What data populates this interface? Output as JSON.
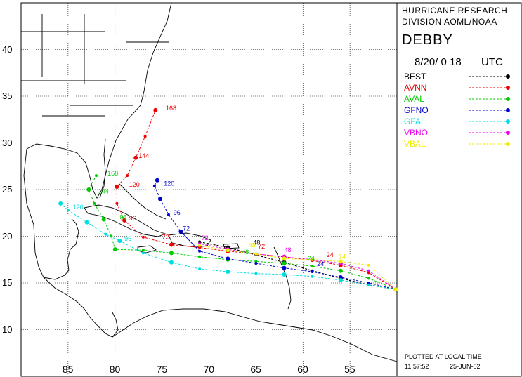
{
  "panel": {
    "org_line1": "HURRICANE RESEARCH",
    "org_line2": "DIVISION AOML/NOAA",
    "storm_name": "DEBBY",
    "forecast_time": "8/20/ 0 18",
    "time_zone": "UTC",
    "footer_note": "PLOTTED AT LOCAL TIME",
    "footer_clock": "11:57:52",
    "footer_date": "25-JUN-02"
  },
  "legend": [
    {
      "name": "BEST",
      "color": "#000000"
    },
    {
      "name": "AVNN",
      "color": "#ee0000"
    },
    {
      "name": "AVAL",
      "color": "#00cc00"
    },
    {
      "name": "GFNO",
      "color": "#0000cc"
    },
    {
      "name": "GFAL",
      "color": "#00dddd"
    },
    {
      "name": "VBNO",
      "color": "#ee00ee"
    },
    {
      "name": "VBAL",
      "color": "#eeee00"
    }
  ],
  "axes": {
    "lat_ticks": [
      "40",
      "35",
      "30",
      "25",
      "20",
      "15",
      "10"
    ],
    "lon_ticks": [
      "85",
      "80",
      "75",
      "70",
      "65",
      "60",
      "55"
    ]
  },
  "chart_data": {
    "type": "map-tracks",
    "lon_range": [
      -90,
      -50
    ],
    "lat_range": [
      5,
      45
    ],
    "tracks": [
      {
        "name": "BEST",
        "points": [
          [
            -50.1,
            14.3
          ],
          [
            -53,
            14.8
          ],
          [
            -56,
            15.5
          ],
          [
            -59,
            16.3
          ],
          [
            -62,
            17.2
          ],
          [
            -65,
            18.0
          ],
          [
            -68,
            18.8
          ],
          [
            -71,
            19.4
          ]
        ],
        "labels": [
          [
            "-65.3",
            "19.1",
            "48"
          ]
        ]
      },
      {
        "name": "AVNN",
        "points": [
          [
            -50.1,
            14.3
          ],
          [
            -53,
            16.1
          ],
          [
            -56,
            16.9
          ],
          [
            -59,
            17.4
          ],
          [
            -62,
            17.8
          ],
          [
            -65,
            18.1
          ],
          [
            -68,
            18.4
          ],
          [
            -71,
            18.8
          ],
          [
            -74,
            19.1
          ],
          [
            -77,
            19.9
          ],
          [
            -79,
            21.7
          ],
          [
            -79.8,
            23.5
          ],
          [
            -79.8,
            25.3
          ],
          [
            -78.7,
            26.5
          ],
          [
            -77.8,
            28.4
          ],
          [
            -76.8,
            30.7
          ],
          [
            -75.7,
            33.5
          ]
        ],
        "labels": [
          [
            "-57.5",
            "17.8",
            "24"
          ],
          [
            "-64.8",
            "18.7",
            "72"
          ],
          [
            "-75",
            "19.7",
            "72"
          ],
          [
            "-78.5",
            "21.7",
            "96"
          ],
          [
            "-78.5",
            "25.3",
            "120"
          ],
          [
            "-77.5",
            "28.4",
            "144"
          ],
          [
            "-74.6",
            "33.5",
            "168"
          ]
        ]
      },
      {
        "name": "AVAL",
        "points": [
          [
            -50.1,
            14.3
          ],
          [
            -53,
            15.5
          ],
          [
            -56,
            16.3
          ],
          [
            -59,
            16.8
          ],
          [
            -62,
            17.1
          ],
          [
            -65,
            17.3
          ],
          [
            -68,
            17.5
          ],
          [
            -71,
            17.8
          ],
          [
            -74,
            18.2
          ],
          [
            -77,
            18.5
          ],
          [
            -80,
            18.6
          ],
          [
            -80.4,
            20.0
          ],
          [
            -81.2,
            21.8
          ],
          [
            -82.2,
            23.5
          ],
          [
            -82.8,
            25.0
          ],
          [
            -82,
            26.5
          ]
        ],
        "labels": [
          [
            "-59.5",
            "17.4",
            "24"
          ],
          [
            "-66.5",
            "18.1",
            "48"
          ],
          [
            "-79.5",
            "21.8",
            "96"
          ],
          [
            "-81.8",
            "24.6",
            "144"
          ],
          [
            "-80.8",
            "26.5",
            "168"
          ]
        ]
      },
      {
        "name": "GFNO",
        "points": [
          [
            -50.1,
            14.3
          ],
          [
            -53,
            15.0
          ],
          [
            -56,
            15.6
          ],
          [
            -59,
            16.2
          ],
          [
            -62,
            16.6
          ],
          [
            -65,
            17.1
          ],
          [
            -68,
            17.6
          ],
          [
            -71,
            18.4
          ],
          [
            -73,
            20.5
          ],
          [
            -74.3,
            22.3
          ],
          [
            -75.2,
            24.0
          ],
          [
            -75.8,
            25.4
          ],
          [
            -75.5,
            26.0
          ]
        ],
        "labels": [
          [
            "-58.5",
            "16.8",
            "24"
          ],
          [
            "-72.8",
            "20.6",
            "72"
          ],
          [
            "-73.8",
            "22.3",
            "96"
          ],
          [
            "-74.8",
            "25.4",
            "120"
          ]
        ]
      },
      {
        "name": "GFAL",
        "points": [
          [
            -50.1,
            14.3
          ],
          [
            -53,
            14.8
          ],
          [
            -56,
            15.3
          ],
          [
            -59,
            15.7
          ],
          [
            -62,
            15.9
          ],
          [
            -65,
            16.0
          ],
          [
            -68,
            16.2
          ],
          [
            -71,
            16.5
          ],
          [
            -74,
            17.2
          ],
          [
            -77,
            18.2
          ],
          [
            -79.5,
            19.5
          ],
          [
            -81,
            20.2
          ],
          [
            -83,
            21.5
          ],
          [
            -85,
            22.8
          ],
          [
            -85.8,
            23.5
          ]
        ],
        "labels": [
          [
            "-79",
            "19.5",
            "96"
          ],
          [
            "-84.5",
            "22.9",
            "120"
          ]
        ]
      },
      {
        "name": "VBNO",
        "points": [
          [
            -50.1,
            14.3
          ],
          [
            -53,
            16.3
          ],
          [
            -56,
            17.1
          ],
          [
            -59,
            17.5
          ],
          [
            -62,
            17.8
          ],
          [
            -65,
            18.1
          ],
          [
            -68,
            18.6
          ],
          [
            -71,
            19.2
          ]
        ],
        "labels": [
          [
            "-62",
            "18.3",
            "48"
          ],
          [
            "-70.8",
            "19.6",
            "72"
          ]
        ]
      },
      {
        "name": "VBAL",
        "points": [
          [
            -50.1,
            14.3
          ],
          [
            -53,
            16.9
          ],
          [
            -56,
            17.3
          ],
          [
            -59,
            17.5
          ],
          [
            -62,
            17.6
          ],
          [
            -65,
            18.1
          ],
          [
            -68,
            18.5
          ],
          [
            -71,
            19.0
          ]
        ],
        "labels": [
          [
            "-56.2",
            "17.6",
            "24"
          ],
          [
            "-65.8",
            "18.8",
            "48"
          ]
        ]
      }
    ]
  }
}
